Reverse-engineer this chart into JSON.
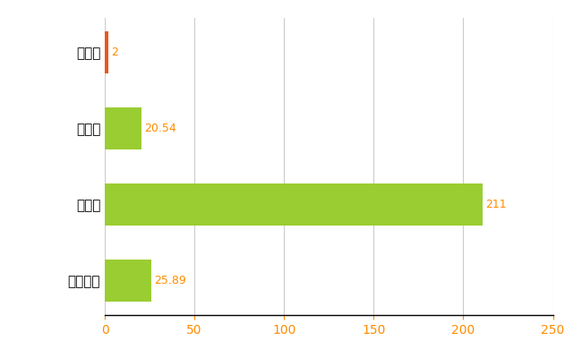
{
  "categories": [
    "蔵王町",
    "県平均",
    "県最大",
    "全国平均"
  ],
  "values": [
    2,
    20.54,
    211,
    25.89
  ],
  "bar_colors": [
    "#e8581a",
    "#9acd32",
    "#9acd32",
    "#9acd32"
  ],
  "value_labels": [
    "2",
    "20.54",
    "211",
    "25.89"
  ],
  "xlim": [
    0,
    250
  ],
  "xticks": [
    0,
    50,
    100,
    150,
    200,
    250
  ],
  "background_color": "#ffffff",
  "grid_color": "#cccccc",
  "tick_color": "#ff8c00",
  "bar_height": 0.55,
  "figsize": [
    6.5,
    4.0
  ],
  "dpi": 100
}
